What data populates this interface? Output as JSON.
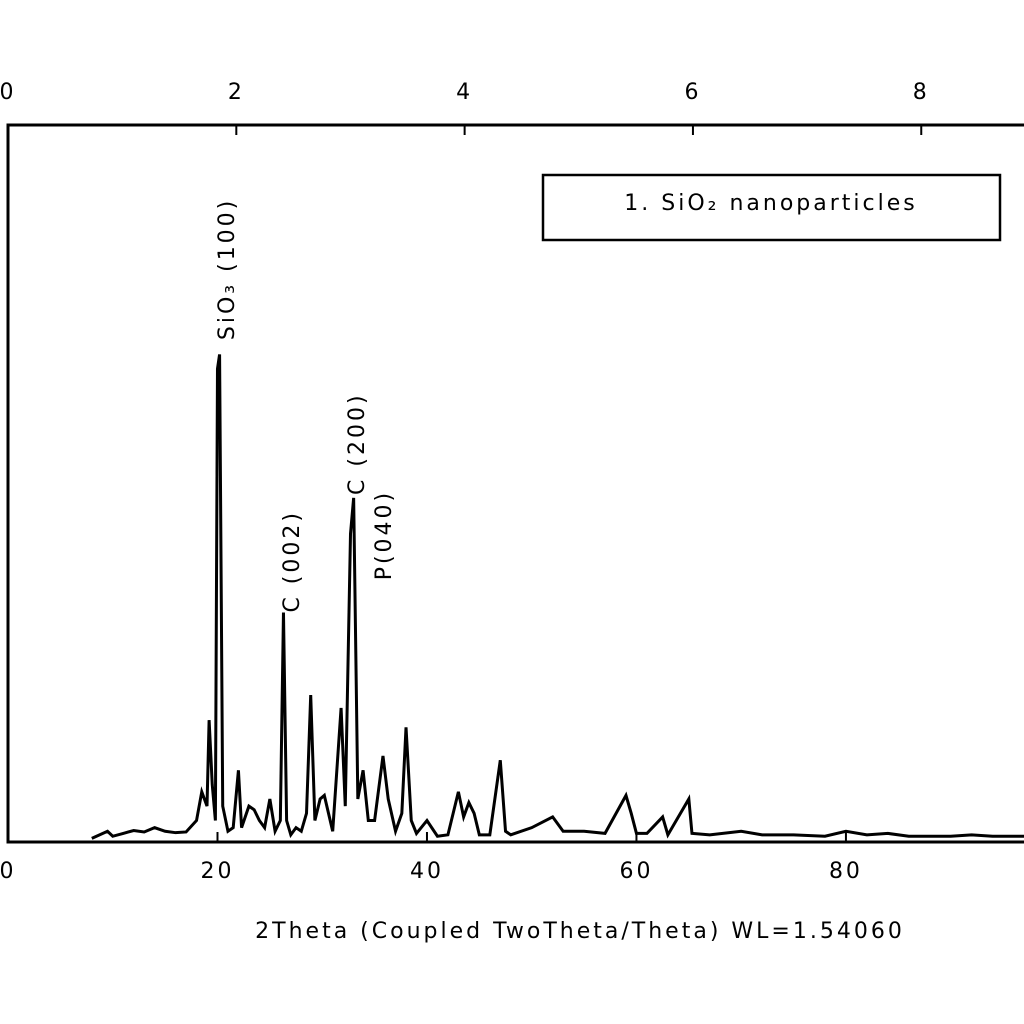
{
  "chart_data": {
    "type": "line",
    "xlabel": "2Theta (Coupled TwoTheta/Theta) WL=1.54060",
    "xlim": [
      0,
      97
    ],
    "xticks": [
      0,
      20,
      40,
      60,
      80
    ],
    "x2lim": [
      0,
      8.9
    ],
    "x2ticks": [
      0,
      2,
      4,
      6,
      8
    ],
    "ylim": [
      0,
      100
    ],
    "legend": "upper right",
    "series": [
      {
        "name": "1. SiO₂ nanoparticles",
        "color": "#000000",
        "x": [
          8,
          9.5,
          10,
          11,
          12,
          13,
          14,
          15,
          16,
          17,
          18,
          18.5,
          19,
          19.2,
          19.5,
          19.8,
          20.0,
          20.2,
          20.5,
          21,
          21.5,
          22,
          22.3,
          23,
          23.5,
          24,
          24.5,
          25,
          25.5,
          26,
          26.3,
          26.6,
          27,
          27.5,
          28,
          28.5,
          28.9,
          29.3,
          29.8,
          30.2,
          31,
          31.8,
          32.2,
          32.7,
          33.0,
          33.4,
          33.9,
          34.4,
          35,
          35.8,
          36.3,
          37,
          37.6,
          38,
          38.5,
          39,
          40,
          41,
          42,
          43,
          43.5,
          44,
          44.5,
          45,
          46,
          47,
          47.5,
          48,
          50,
          52,
          53,
          55,
          57,
          59,
          59.5,
          60,
          61,
          62.5,
          63,
          65,
          65.3,
          67,
          70,
          72,
          75,
          78,
          80,
          82,
          84,
          86,
          88,
          90,
          92,
          94,
          97
        ],
        "values": [
          0.5,
          1.5,
          0.8,
          1.2,
          1.6,
          1.4,
          2,
          1.5,
          1.3,
          1.4,
          3,
          7,
          5,
          17,
          8,
          3,
          66,
          68,
          5,
          1.5,
          2,
          10,
          2,
          5,
          4.5,
          3,
          2,
          6,
          1.5,
          3,
          32,
          3,
          1,
          2,
          1.5,
          4,
          20.5,
          3,
          6,
          6.5,
          1.5,
          18.7,
          5,
          43,
          48,
          6,
          10,
          3,
          3,
          12,
          6,
          1.5,
          4,
          16,
          3,
          1.2,
          3,
          0.8,
          1,
          7,
          3.5,
          5.5,
          4,
          1,
          1,
          11.4,
          1.5,
          1,
          2,
          3.5,
          1.5,
          1.5,
          1.2,
          6.5,
          4,
          1.2,
          1.2,
          3.5,
          1,
          6,
          1.2,
          1,
          1.5,
          1,
          1,
          0.8,
          1.5,
          1,
          1.2,
          0.8,
          0.8,
          0.8,
          1,
          0.8,
          0.8
        ]
      }
    ],
    "annotations": [
      {
        "text": "SiO₃ (100)",
        "x": 21.0,
        "y": 70
      },
      {
        "text": "C (002)",
        "x": 27.2,
        "y": 32
      },
      {
        "text": "C (200)",
        "x": 33.4,
        "y": 48.4
      },
      {
        "text": "P(040)",
        "x": 36.0,
        "y": 36.5
      }
    ]
  }
}
